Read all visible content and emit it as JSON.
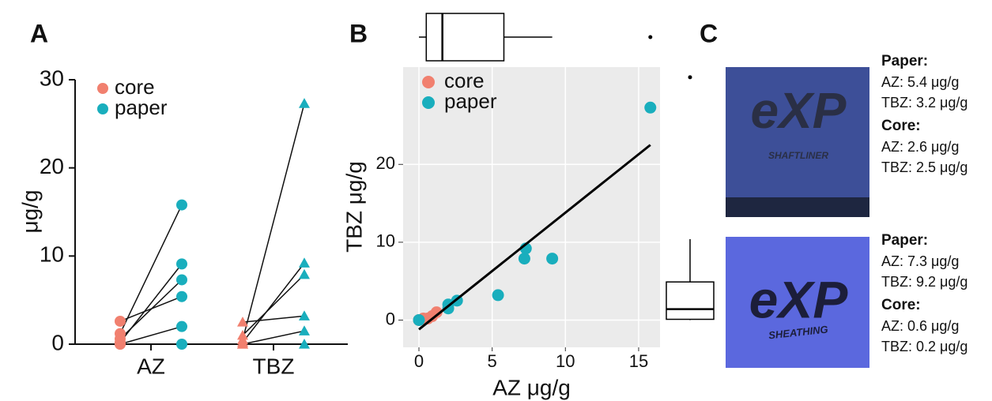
{
  "panel_labels": [
    "A",
    "B",
    "C"
  ],
  "chart_data": [
    {
      "type": "paired_dot",
      "y_label": "μg/g",
      "categories": [
        "AZ",
        "TBZ"
      ],
      "markers": [
        "circle",
        "triangle"
      ],
      "series": [
        {
          "name": "core",
          "color": "#f1806f",
          "values": [
            [
              2.6,
              0.6,
              1.2,
              0.2,
              0,
              0
            ],
            [
              2.5,
              0.2,
              0.5,
              1.0,
              0,
              0
            ]
          ]
        },
        {
          "name": "paper",
          "color": "#19aebd",
          "values": [
            [
              5.4,
              7.3,
              15.8,
              9.1,
              2.0,
              0
            ],
            [
              3.2,
              9.2,
              27.3,
              7.9,
              1.5,
              0
            ]
          ]
        }
      ],
      "ylim": [
        0,
        30
      ],
      "yticks": [
        0,
        10,
        20,
        30
      ]
    },
    {
      "type": "scatter",
      "x_label": "AZ μg/g",
      "y_label": "TBZ μg/g",
      "grid": true,
      "series": [
        {
          "name": "core",
          "color": "#f1806f",
          "x": [
            0,
            0.3,
            0.6,
            0.9,
            1.2
          ],
          "y": [
            0,
            0.2,
            0.2,
            0.5,
            1.0
          ]
        },
        {
          "name": "paper",
          "color": "#19aebd",
          "x": [
            0,
            2.0,
            2.0,
            2.6,
            5.4,
            7.2,
            7.3,
            9.1,
            15.8
          ],
          "y": [
            0,
            1.5,
            2.0,
            2.5,
            3.2,
            7.9,
            9.2,
            7.9,
            27.3
          ]
        }
      ],
      "fit": {
        "x": [
          0,
          15.8
        ],
        "y": [
          -1.2,
          22.5
        ]
      },
      "x_box": {
        "min": 0,
        "q1": 0.5,
        "median": 1.6,
        "q3": 5.8,
        "max": 9.1,
        "outliers": [
          15.8
        ]
      },
      "y_box": {
        "min": 0,
        "q1": 0.1,
        "median": 1.4,
        "q3": 4.9,
        "max": 10.4,
        "outliers": [
          31.2
        ]
      },
      "xlim": [
        -1.08,
        16.46
      ],
      "ylim": [
        -3.5,
        32.5
      ],
      "xticks": [
        0,
        5,
        10,
        15
      ],
      "yticks": [
        0,
        10,
        20
      ]
    }
  ],
  "panel_c": {
    "items": [
      {
        "logo": "eXP",
        "caption": "SHAFTLINER",
        "paper": {
          "label": "Paper:",
          "lines": [
            "AZ: 5.4 μg/g",
            "TBZ: 3.2 μg/g"
          ]
        },
        "core": {
          "label": "Core:",
          "lines": [
            "AZ: 2.6 μg/g",
            "TBZ: 2.5 μg/g"
          ]
        }
      },
      {
        "logo": "eXP",
        "caption": "SHEATHING",
        "paper": {
          "label": "Paper:",
          "lines": [
            "AZ: 7.3 μg/g",
            "TBZ: 9.2 μg/g"
          ]
        },
        "core": {
          "label": "Core:",
          "lines": [
            "AZ: 0.6 μg/g",
            "TBZ: 0.2 μg/g"
          ]
        }
      }
    ]
  }
}
